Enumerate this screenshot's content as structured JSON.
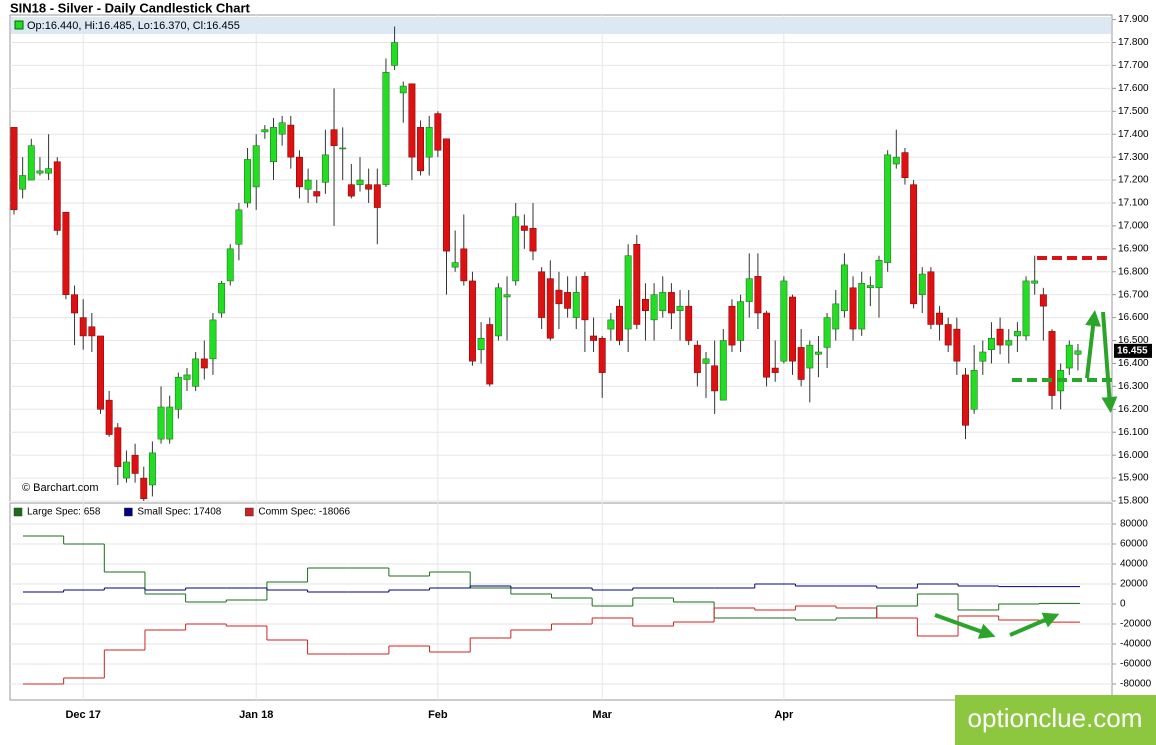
{
  "chart_data": [
    {
      "type": "candlestick",
      "title": "SIN18 - Silver - Daily Candlestick Chart",
      "info": "Op:16.440, Hi:16.485, Lo:16.370, Cl:16.455",
      "source": "© Barchart.com",
      "up_color": "#22dd22",
      "down_color": "#dd1111",
      "categories": [
        null,
        null,
        null,
        null,
        null,
        null,
        null,
        null,
        "Dec 17",
        null,
        null,
        null,
        null,
        null,
        null,
        null,
        null,
        null,
        null,
        null,
        null,
        null,
        null,
        null,
        null,
        null,
        null,
        null,
        "Jan 18",
        null,
        null,
        null,
        null,
        null,
        null,
        null,
        null,
        null,
        null,
        null,
        null,
        null,
        null,
        null,
        null,
        null,
        null,
        null,
        null,
        "Feb",
        null,
        null,
        null,
        null,
        null,
        null,
        null,
        null,
        null,
        null,
        null,
        null,
        null,
        null,
        null,
        null,
        null,
        null,
        "Mar",
        null,
        null,
        null,
        null,
        null,
        null,
        null,
        null,
        null,
        null,
        null,
        null,
        null,
        null,
        null,
        null,
        null,
        null,
        null,
        null,
        "Apr",
        null,
        null,
        null,
        null,
        null,
        null,
        null,
        null,
        null,
        null,
        null,
        null,
        null,
        null,
        null,
        null,
        null,
        null,
        null,
        null,
        null,
        null,
        null,
        null,
        null,
        null,
        null,
        null,
        null,
        null,
        null,
        null,
        null,
        null
      ],
      "open": [
        17.43,
        17.16,
        17.2,
        17.23,
        17.23,
        17.28,
        17.06,
        16.7,
        16.6,
        16.56,
        16.52,
        16.24,
        16.12,
        15.9,
        16.0,
        15.9,
        15.87,
        16.07,
        16.07,
        16.2,
        16.33,
        16.3,
        16.42,
        16.42,
        16.62,
        16.76,
        16.92,
        17.1,
        17.17,
        17.41,
        17.28,
        17.4,
        17.44,
        17.3,
        17.16,
        17.15,
        17.19,
        17.42,
        17.34,
        17.18,
        17.18,
        17.18,
        17.18,
        17.18,
        17.7,
        17.58,
        17.62,
        17.43,
        17.3,
        17.49,
        17.38,
        16.82,
        16.9,
        16.76,
        16.46,
        16.57,
        16.52,
        16.69,
        16.76,
        17.0,
        16.99,
        16.8,
        16.77,
        16.72,
        16.71,
        16.6,
        16.78,
        16.52,
        16.51,
        16.55,
        16.65,
        16.55,
        16.92,
        16.68,
        16.59,
        16.63,
        16.71,
        16.63,
        16.65,
        16.48,
        16.4,
        16.39,
        16.24,
        16.65,
        16.5,
        16.67,
        16.78,
        16.62,
        16.38,
        16.41,
        16.69,
        16.47,
        16.38,
        16.44,
        16.47,
        16.55,
        16.63,
        16.73,
        16.55,
        16.73,
        16.73,
        16.84,
        17.27,
        17.32,
        17.18,
        16.7,
        16.8,
        16.62,
        16.57,
        16.55,
        16.35,
        16.2,
        16.41,
        16.46,
        16.55,
        16.48,
        16.52,
        16.52,
        16.75,
        16.7,
        16.54,
        16.28,
        16.38,
        16.44
      ],
      "high": [
        17.43,
        17.3,
        17.38,
        17.3,
        17.4,
        17.3,
        17.06,
        16.74,
        16.68,
        16.62,
        16.52,
        16.28,
        16.14,
        16.02,
        16.05,
        15.95,
        16.06,
        16.3,
        16.26,
        16.36,
        16.38,
        16.45,
        16.5,
        16.62,
        16.76,
        16.92,
        17.1,
        17.34,
        17.4,
        17.44,
        17.47,
        17.48,
        17.48,
        17.33,
        17.25,
        17.2,
        17.42,
        17.6,
        17.43,
        17.27,
        17.3,
        17.25,
        17.25,
        17.73,
        17.87,
        17.63,
        17.62,
        17.46,
        17.48,
        17.5,
        17.38,
        16.98,
        17.05,
        16.8,
        16.58,
        16.6,
        16.75,
        16.78,
        17.1,
        17.05,
        17.1,
        16.82,
        16.85,
        16.8,
        16.78,
        16.78,
        16.8,
        16.6,
        16.52,
        16.62,
        16.68,
        16.92,
        16.96,
        16.75,
        16.75,
        16.78,
        16.75,
        16.72,
        16.72,
        16.5,
        16.45,
        16.5,
        16.55,
        16.68,
        16.7,
        16.88,
        16.88,
        16.63,
        16.5,
        16.78,
        16.7,
        16.55,
        16.5,
        16.52,
        16.62,
        16.72,
        16.88,
        16.78,
        16.8,
        16.78,
        16.87,
        17.33,
        17.42,
        17.34,
        17.2,
        16.82,
        16.82,
        16.65,
        16.6,
        16.6,
        16.38,
        16.48,
        16.5,
        16.58,
        16.6,
        16.55,
        16.58,
        16.78,
        16.87,
        16.73,
        16.55,
        16.4,
        16.5,
        16.485
      ],
      "low": [
        17.05,
        17.12,
        17.2,
        17.22,
        17.2,
        16.96,
        16.68,
        16.48,
        16.46,
        16.45,
        16.18,
        16.08,
        15.87,
        15.88,
        15.88,
        15.8,
        15.82,
        16.05,
        16.05,
        16.16,
        16.28,
        16.28,
        16.33,
        16.35,
        16.6,
        16.74,
        16.85,
        17.08,
        17.07,
        17.38,
        17.2,
        17.35,
        17.25,
        17.12,
        17.1,
        17.1,
        17.14,
        17.0,
        17.2,
        17.12,
        17.15,
        17.1,
        16.92,
        17.17,
        17.68,
        17.45,
        17.2,
        17.22,
        17.22,
        17.3,
        16.7,
        16.8,
        16.74,
        16.39,
        16.4,
        16.3,
        16.5,
        16.5,
        16.74,
        16.9,
        16.85,
        16.55,
        16.5,
        16.55,
        16.6,
        16.55,
        16.45,
        16.45,
        16.25,
        16.5,
        16.48,
        16.45,
        16.55,
        16.5,
        16.5,
        16.6,
        16.55,
        16.5,
        16.48,
        16.3,
        16.25,
        16.18,
        16.24,
        16.45,
        16.45,
        16.6,
        16.55,
        16.3,
        16.32,
        16.4,
        16.35,
        16.3,
        16.23,
        16.34,
        16.38,
        16.5,
        16.6,
        16.5,
        16.52,
        16.65,
        16.6,
        16.8,
        17.25,
        17.18,
        16.64,
        16.62,
        16.55,
        16.5,
        16.45,
        16.35,
        16.07,
        16.18,
        16.35,
        16.4,
        16.44,
        16.4,
        16.45,
        16.5,
        16.7,
        16.5,
        16.2,
        16.2,
        16.35,
        16.37
      ],
      "close": [
        17.07,
        17.22,
        17.35,
        17.24,
        17.25,
        16.98,
        16.7,
        16.62,
        16.52,
        16.52,
        16.2,
        16.09,
        15.95,
        15.97,
        15.92,
        15.81,
        16.01,
        16.21,
        16.21,
        16.34,
        16.35,
        16.42,
        16.38,
        16.59,
        16.75,
        16.9,
        17.07,
        17.29,
        17.35,
        17.42,
        17.43,
        17.45,
        17.3,
        17.17,
        17.2,
        17.13,
        17.31,
        17.35,
        17.34,
        17.13,
        17.2,
        17.16,
        17.08,
        17.67,
        17.8,
        17.61,
        17.3,
        17.24,
        17.43,
        17.33,
        16.89,
        16.84,
        16.76,
        16.41,
        16.51,
        16.31,
        16.73,
        16.7,
        17.04,
        16.98,
        16.89,
        16.6,
        16.51,
        16.66,
        16.64,
        16.71,
        16.59,
        16.5,
        16.36,
        16.59,
        16.5,
        16.87,
        16.57,
        16.63,
        16.7,
        16.71,
        16.62,
        16.65,
        16.5,
        16.36,
        16.42,
        16.28,
        16.5,
        16.48,
        16.67,
        16.77,
        16.62,
        16.34,
        16.36,
        16.76,
        16.41,
        16.33,
        16.48,
        16.45,
        16.6,
        16.66,
        16.83,
        16.55,
        16.75,
        16.74,
        16.85,
        17.31,
        17.3,
        17.21,
        16.66,
        16.79,
        16.57,
        16.57,
        16.48,
        16.41,
        16.13,
        16.37,
        16.45,
        16.51,
        16.48,
        16.5,
        16.54,
        16.76,
        16.76,
        16.65,
        16.26,
        16.37,
        16.48,
        16.455
      ],
      "last_price": {
        "value": 16.455,
        "label": "16.455"
      },
      "ylim": [
        15.8,
        17.92
      ],
      "yticks": [
        {
          "value": 15.8,
          "label": "15.800"
        },
        {
          "value": 15.9,
          "label": "15.900"
        },
        {
          "value": 16.0,
          "label": "16.000"
        },
        {
          "value": 16.1,
          "label": "16.100"
        },
        {
          "value": 16.2,
          "label": "16.200"
        },
        {
          "value": 16.3,
          "label": "16.300"
        },
        {
          "value": 16.4,
          "label": "16.400"
        },
        {
          "value": 16.5,
          "label": "16.500"
        },
        {
          "value": 16.6,
          "label": "16.600"
        },
        {
          "value": 16.7,
          "label": "16.700"
        },
        {
          "value": 16.8,
          "label": "16.800"
        },
        {
          "value": 16.9,
          "label": "16.900"
        },
        {
          "value": 17.0,
          "label": "17.000"
        },
        {
          "value": 17.1,
          "label": "17.100"
        },
        {
          "value": 17.2,
          "label": "17.200"
        },
        {
          "value": 17.3,
          "label": "17.300"
        },
        {
          "value": 17.4,
          "label": "17.400"
        },
        {
          "value": 17.5,
          "label": "17.500"
        },
        {
          "value": 17.6,
          "label": "17.600"
        },
        {
          "value": 17.7,
          "label": "17.700"
        },
        {
          "value": 17.8,
          "label": "17.800"
        },
        {
          "value": 17.9,
          "label": "17.900"
        }
      ],
      "grid": true
    },
    {
      "type": "step",
      "series": [
        {
          "name": "Large Spec: 658",
          "color": "#1a6e1a",
          "values": [
            68000,
            60000,
            32000,
            10000,
            2000,
            4000,
            22000,
            36000,
            36000,
            28000,
            32000,
            16000,
            10000,
            6000,
            -2000,
            6000,
            2000,
            -14000,
            -14000,
            -16000,
            -14000,
            -2000,
            10000,
            -6000,
            0,
            658
          ]
        },
        {
          "name": "Small Spec: 17408",
          "color": "#000080",
          "values": [
            12000,
            14000,
            16000,
            14000,
            16000,
            16000,
            14000,
            12000,
            12000,
            14000,
            16000,
            18000,
            16000,
            16000,
            14000,
            16000,
            16000,
            16000,
            20000,
            18000,
            18000,
            16000,
            20000,
            18000,
            17408,
            17408
          ]
        },
        {
          "name": "Comm Spec: -18066",
          "color": "#cc2222",
          "values": [
            -80000,
            -74000,
            -46000,
            -26000,
            -20000,
            -22000,
            -36000,
            -50000,
            -50000,
            -42000,
            -48000,
            -34000,
            -26000,
            -20000,
            -14000,
            -22000,
            -18000,
            -4000,
            -6000,
            -2000,
            -4000,
            -14000,
            -32000,
            -12000,
            -16000,
            -18066
          ]
        }
      ],
      "ylim": [
        -96000,
        101000
      ],
      "yticks": [
        -80000,
        -60000,
        -40000,
        -20000,
        0,
        20000,
        40000,
        60000,
        80000
      ]
    }
  ],
  "watermark": "optionclue.com"
}
